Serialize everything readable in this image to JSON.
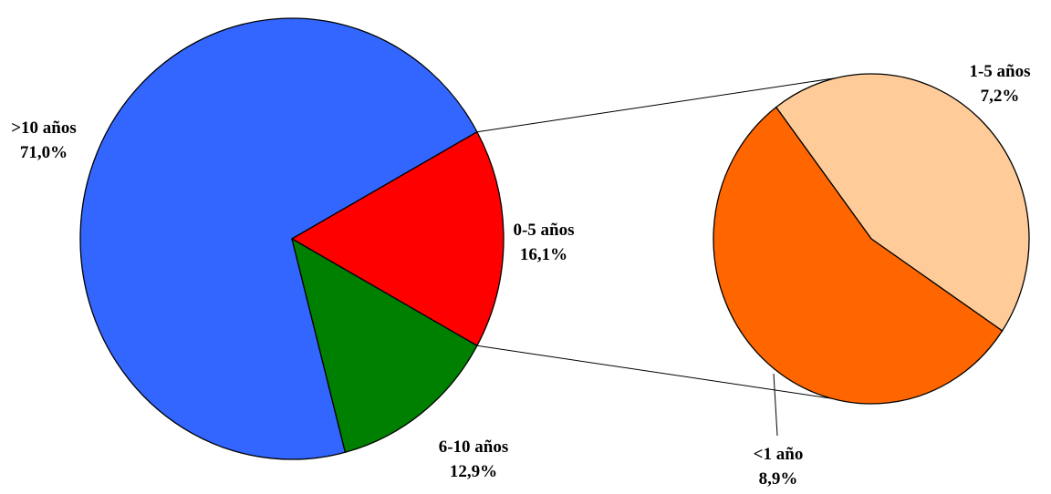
{
  "chart_data": {
    "type": "pie",
    "variant": "pie-of-pie",
    "main_pie": {
      "slices": [
        {
          "label": ">10 años",
          "value": 71.0,
          "value_label": "71,0%",
          "color": "#3366FF"
        },
        {
          "label": "0-5 años",
          "value": 16.1,
          "value_label": "16,1%",
          "color": "#FF0000"
        },
        {
          "label": "6-10 años",
          "value": 12.9,
          "value_label": "12,9%",
          "color": "#008000"
        }
      ]
    },
    "secondary_pie": {
      "expands": "0-5 años",
      "slices": [
        {
          "label": "1-5 años",
          "value": 7.2,
          "value_label": "7,2%",
          "color": "#FFCC99"
        },
        {
          "label": "<1 año",
          "value": 8.9,
          "value_label": "8,9%",
          "color": "#FF6600"
        }
      ]
    },
    "legend": "none"
  }
}
